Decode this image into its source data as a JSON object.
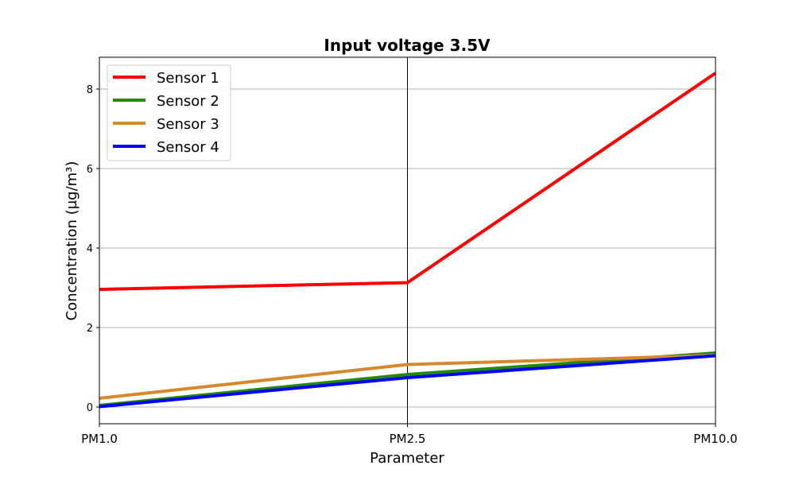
{
  "chart_data": {
    "type": "line",
    "title": "Input voltage 3.5V",
    "xlabel": "Parameter",
    "ylabel": "Concentration (µg/m³)",
    "categories": [
      "PM1.0",
      "PM2.5",
      "PM10.0"
    ],
    "ylim": [
      -0.42,
      8.8
    ],
    "yticks": [
      0,
      2,
      4,
      6,
      8
    ],
    "grid": "y",
    "legend_position": "top-left",
    "series": [
      {
        "name": "Sensor 1",
        "color": "#ff0000",
        "values": [
          2.96,
          3.13,
          8.4
        ]
      },
      {
        "name": "Sensor 2",
        "color": "#228b00",
        "values": [
          0.04,
          0.82,
          1.36
        ]
      },
      {
        "name": "Sensor 3",
        "color": "#d4892e",
        "values": [
          0.22,
          1.07,
          1.3
        ]
      },
      {
        "name": "Sensor 4",
        "color": "#0000ff",
        "values": [
          0.01,
          0.74,
          1.29
        ]
      }
    ]
  }
}
